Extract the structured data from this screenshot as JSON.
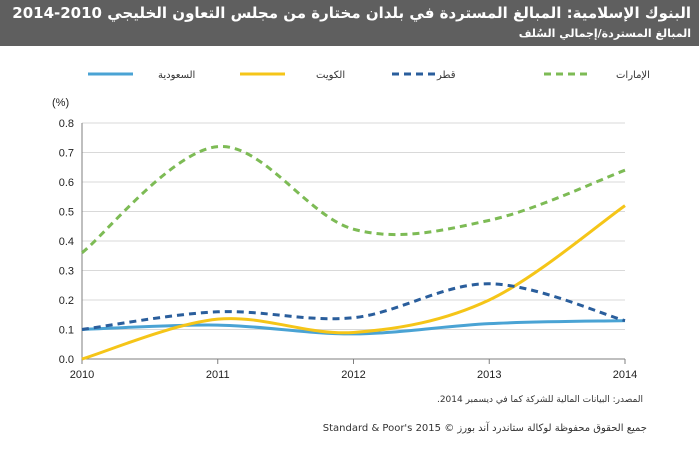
{
  "header": {
    "title": "البنوك الإسلامية: المبالغ المستردة في بلدان مختارة من مجلس التعاون الخليجي 2010-2014",
    "subtitle": "المبالغ المستردة/إجمالي السُلف"
  },
  "footer": {
    "source": "المصدر: البيانات المالية للشركة كما في ديسمبر 2014.",
    "copyright": "Standard & Poor's 2015 © جميع الحقوق محفوظة لوكالة ستاندرد آند بورز"
  },
  "colors": {
    "header_bg": "#5f5f5f",
    "saudi": "#4aa3d4",
    "kuwait": "#f5c518",
    "qatar": "#2a5e9c",
    "uae": "#7dbb55"
  },
  "chart_data": {
    "type": "line",
    "title": "البنوك الإسلامية: المبالغ المستردة في بلدان مختارة من مجلس التعاون الخليجي 2010-2014",
    "subtitle": "المبالغ المستردة/إجمالي السُلف",
    "ylabel": "(%)",
    "xlabel": "",
    "x": [
      "2010",
      "2011",
      "2012",
      "2013",
      "2014"
    ],
    "ylim": [
      0,
      0.8
    ],
    "yticks": [
      "0.0",
      "0.1",
      "0.2",
      "0.3",
      "0.4",
      "0.5",
      "0.6",
      "0.7",
      "0.8"
    ],
    "grid": true,
    "legend_position": "top",
    "series": [
      {
        "name": "السعودية",
        "style": "solid",
        "color": "#4aa3d4",
        "values": [
          0.1,
          0.115,
          0.085,
          0.12,
          0.13
        ]
      },
      {
        "name": "الكويت",
        "style": "solid",
        "color": "#f5c518",
        "values": [
          0.0,
          0.135,
          0.09,
          0.2,
          0.52
        ]
      },
      {
        "name": "قطر",
        "style": "dashed",
        "color": "#2a5e9c",
        "values": [
          0.1,
          0.16,
          0.14,
          0.255,
          0.13
        ]
      },
      {
        "name": "الإمارات",
        "style": "dashed",
        "color": "#7dbb55",
        "values": [
          0.36,
          0.72,
          0.44,
          0.47,
          0.64
        ]
      }
    ]
  }
}
